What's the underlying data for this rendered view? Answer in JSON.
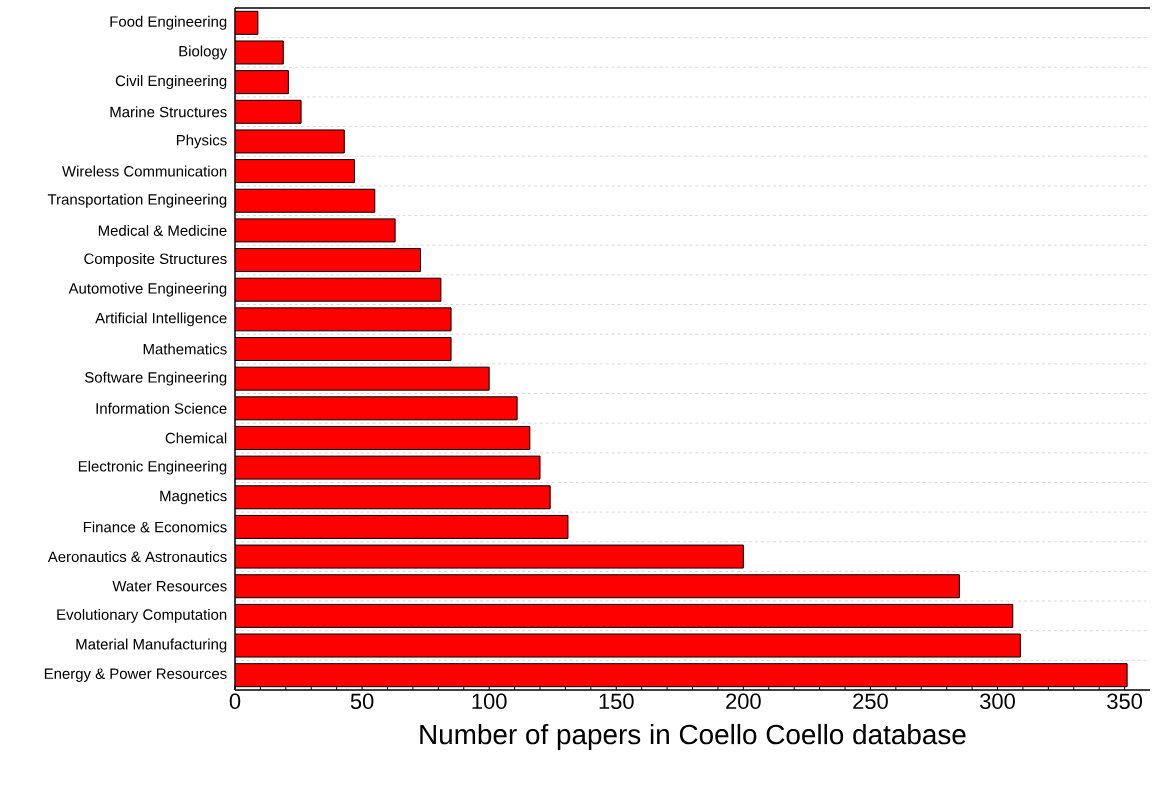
{
  "chart_data": {
    "type": "bar",
    "orientation": "horizontal",
    "xlabel": "Number of papers in Coello Coello database",
    "categories": [
      "Food Engineering",
      "Biology",
      "Civil Engineering",
      "Marine Structures",
      "Physics",
      "Wireless Communication",
      "Transportation Engineering",
      "Medical & Medicine",
      "Composite Structures",
      "Automotive Engineering",
      "Artificial Intelligence",
      "Mathematics",
      "Software Engineering",
      "Information Science",
      "Chemical",
      "Electronic Engineering",
      "Magnetics",
      "Finance & Economics",
      "Aeronautics & Astronautics",
      "Water Resources",
      "Evolutionary Computation",
      "Material Manufacturing",
      "Energy & Power Resources"
    ],
    "values": [
      9,
      19,
      21,
      26,
      43,
      47,
      55,
      63,
      73,
      81,
      85,
      85,
      100,
      111,
      116,
      120,
      124,
      131,
      200,
      285,
      306,
      309,
      351
    ],
    "color": "#ff0000",
    "xlim": [
      0,
      360
    ],
    "xticks": [
      0,
      50,
      100,
      150,
      200,
      250,
      300,
      350
    ],
    "grid": "y"
  }
}
